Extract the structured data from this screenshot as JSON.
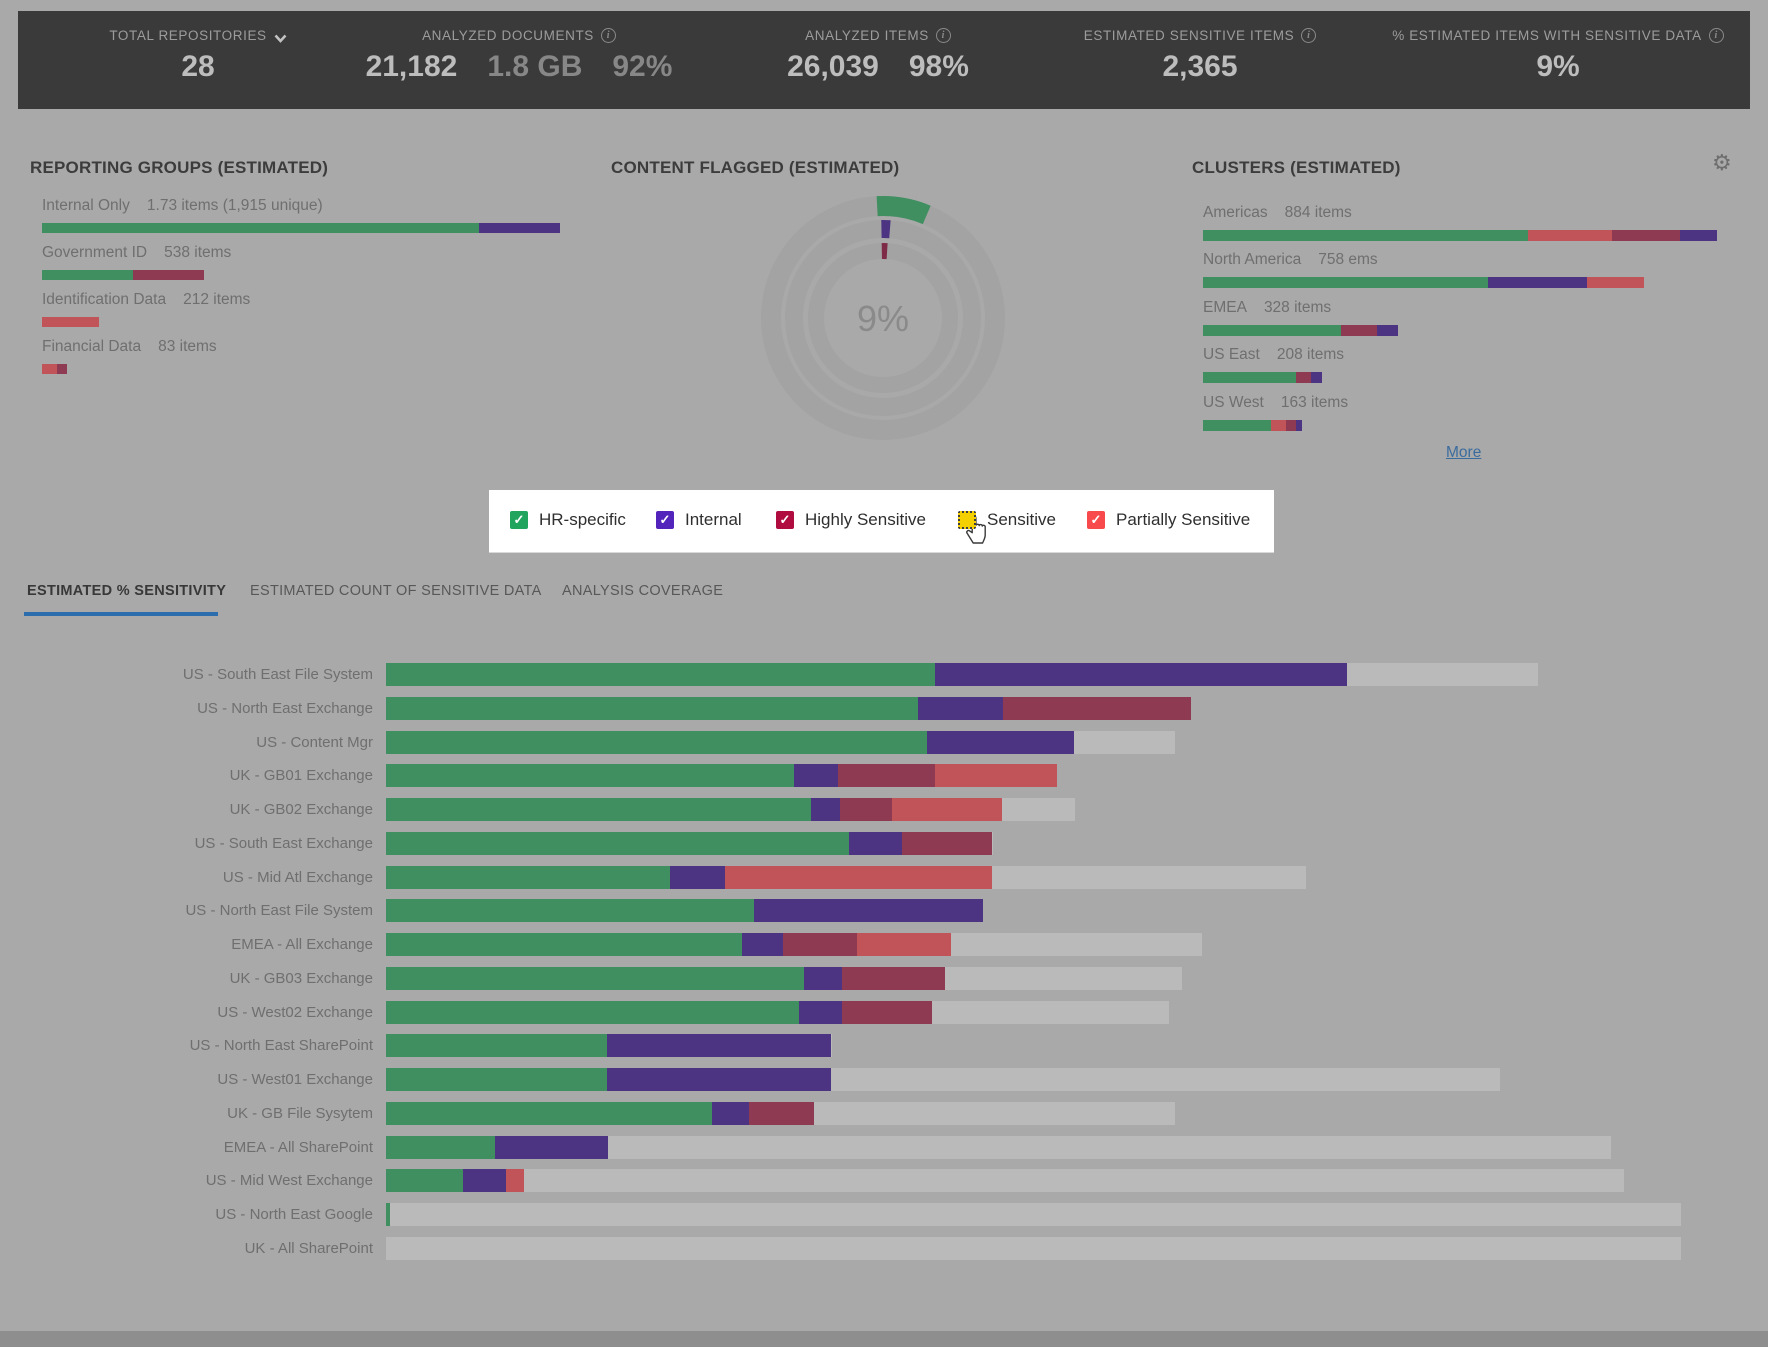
{
  "icons": {
    "gear": "⚙",
    "check": "✓",
    "info": "i"
  },
  "colors": {
    "hr": "#3f8f61",
    "internal": "#4d3483",
    "highly": "#8d3a52",
    "partially": "#c05459",
    "track": "#bababa",
    "ring_gray": "#a3a3a3",
    "donut_highly": "#7e2b47",
    "tab_accent": "#2c6dad",
    "link": "#3b6c9e"
  },
  "header": {
    "metrics": [
      {
        "label": "TOTAL REPOSITORIES",
        "icon": "chevron-down",
        "values": [
          {
            "text": "28",
            "dim": false
          }
        ]
      },
      {
        "label": "ANALYZED DOCUMENTS",
        "icon": "info",
        "values": [
          {
            "text": "21,182",
            "dim": false
          },
          {
            "text": "1.8 GB",
            "dim": true
          },
          {
            "text": "92%",
            "dim": true
          }
        ]
      },
      {
        "label": "ANALYZED ITEMS",
        "icon": "info",
        "values": [
          {
            "text": "26,039",
            "dim": false
          },
          {
            "text": "98%",
            "dim": false
          }
        ]
      },
      {
        "label": "ESTIMATED SENSITIVE ITEMS",
        "icon": "info",
        "values": [
          {
            "text": "2,365",
            "dim": false
          }
        ]
      },
      {
        "label": "% ESTIMATED ITEMS WITH SENSITIVE DATA",
        "icon": "info",
        "values": [
          {
            "text": "9%",
            "dim": false
          }
        ]
      }
    ]
  },
  "panels": {
    "reporting_groups": {
      "title": "REPORTING GROUPS (ESTIMATED)",
      "items": [
        {
          "label": "Internal Only",
          "value": "1.73 items (1,915 unique)",
          "segments": [
            [
              "hr",
              437
            ],
            [
              "internal",
              81
            ]
          ]
        },
        {
          "label": "Government ID",
          "value": "538 items",
          "segments": [
            [
              "hr",
              91
            ],
            [
              "highly",
              71
            ]
          ]
        },
        {
          "label": "Identification Data",
          "value": "212 items",
          "segments": [
            [
              "partially",
              57
            ]
          ]
        },
        {
          "label": "Financial Data",
          "value": "83 items",
          "segments": [
            [
              "partially",
              15
            ],
            [
              "highly",
              10
            ]
          ]
        }
      ]
    },
    "content_flagged": {
      "title": "CONTENT FLAGGED (ESTIMATED)",
      "center_label": "9%",
      "rings": [
        {
          "name": "outer",
          "color": "hr",
          "sweep_deg": 26
        },
        {
          "name": "middle",
          "color": "internal",
          "sweep_deg": 5.5
        },
        {
          "name": "inner",
          "color": "donut_highly",
          "sweep_deg": 4.5
        }
      ]
    },
    "clusters": {
      "title": "CLUSTERS (ESTIMATED)",
      "more_label": "More",
      "items": [
        {
          "label": "Americas",
          "value": "884 items",
          "segments": [
            [
              "hr",
              325
            ],
            [
              "partially",
              84
            ],
            [
              "highly",
              68
            ],
            [
              "internal",
              37
            ]
          ]
        },
        {
          "label": "North America",
          "value": "758 ems",
          "segments": [
            [
              "hr",
              285
            ],
            [
              "internal",
              99
            ],
            [
              "partially",
              57
            ]
          ]
        },
        {
          "label": "EMEA",
          "value": "328 items",
          "segments": [
            [
              "hr",
              138
            ],
            [
              "highly",
              36
            ],
            [
              "internal",
              21
            ]
          ]
        },
        {
          "label": "US East",
          "value": "208 items",
          "segments": [
            [
              "hr",
              93
            ],
            [
              "highly",
              15
            ],
            [
              "internal",
              11
            ]
          ]
        },
        {
          "label": "US West",
          "value": "163 items",
          "segments": [
            [
              "hr",
              68
            ],
            [
              "partially",
              15
            ],
            [
              "highly",
              10
            ],
            [
              "internal",
              6
            ]
          ]
        }
      ]
    }
  },
  "legend": {
    "items": [
      {
        "label": "HR-specific",
        "color": "#21a55e",
        "checked": true,
        "focused": false
      },
      {
        "label": "Internal",
        "color": "#5324bb",
        "checked": true,
        "focused": false
      },
      {
        "label": "Highly Sensitive",
        "color": "#b00c40",
        "checked": true,
        "focused": false
      },
      {
        "label": "Sensitive",
        "color": "#f5d000",
        "checked": false,
        "focused": true
      },
      {
        "label": "Partially Sensitive",
        "color": "#f8494d",
        "checked": true,
        "focused": false
      }
    ]
  },
  "tabs": [
    {
      "label": "ESTIMATED % SENSITIVITY",
      "active": true
    },
    {
      "label": "ESTIMATED COUNT OF SENSITIVE DATA",
      "active": false
    },
    {
      "label": "ANALYSIS COVERAGE",
      "active": false
    }
  ],
  "chart_data": {
    "type": "bar",
    "orientation": "horizontal-stacked",
    "unit": "px-at-1768w (relative estimated sensitivity share)",
    "track_max": 1295,
    "series_legend": [
      "HR-specific",
      "Internal",
      "Highly Sensitive",
      "Sensitive",
      "Partially Sensitive"
    ],
    "rows": [
      {
        "label": "US - South East File System",
        "track": 1152,
        "segments": [
          [
            "hr",
            549
          ],
          [
            "internal",
            412
          ]
        ]
      },
      {
        "label": "US - North East Exchange",
        "track": 805,
        "segments": [
          [
            "hr",
            532
          ],
          [
            "internal",
            85
          ],
          [
            "highly",
            188
          ]
        ]
      },
      {
        "label": "US - Content Mgr",
        "track": 789,
        "segments": [
          [
            "hr",
            541
          ],
          [
            "internal",
            147
          ]
        ]
      },
      {
        "label": "UK - GB01 Exchange",
        "track": 671,
        "segments": [
          [
            "hr",
            408
          ],
          [
            "internal",
            44
          ],
          [
            "highly",
            97
          ],
          [
            "partially",
            122
          ]
        ]
      },
      {
        "label": "UK - GB02 Exchange",
        "track": 689,
        "segments": [
          [
            "hr",
            425
          ],
          [
            "internal",
            29
          ],
          [
            "highly",
            52
          ],
          [
            "partially",
            110
          ]
        ]
      },
      {
        "label": "US - South East Exchange",
        "track": 607,
        "segments": [
          [
            "hr",
            463
          ],
          [
            "internal",
            53
          ],
          [
            "highly",
            90
          ]
        ]
      },
      {
        "label": "US - Mid Atl Exchange",
        "track": 920,
        "segments": [
          [
            "hr",
            284
          ],
          [
            "internal",
            55
          ],
          [
            "partially",
            267
          ]
        ]
      },
      {
        "label": "US - North East File System",
        "track": 597,
        "segments": [
          [
            "hr",
            368
          ],
          [
            "internal",
            229
          ]
        ]
      },
      {
        "label": "EMEA - All Exchange",
        "track": 816,
        "segments": [
          [
            "hr",
            356
          ],
          [
            "internal",
            41
          ],
          [
            "highly",
            74
          ],
          [
            "partially",
            94
          ]
        ]
      },
      {
        "label": "UK - GB03 Exchange",
        "track": 796,
        "segments": [
          [
            "hr",
            418
          ],
          [
            "internal",
            38
          ],
          [
            "highly",
            103
          ]
        ]
      },
      {
        "label": "US - West02 Exchange",
        "track": 783,
        "segments": [
          [
            "hr",
            413
          ],
          [
            "internal",
            43
          ],
          [
            "highly",
            90
          ]
        ]
      },
      {
        "label": "US - North East SharePoint",
        "track": 446,
        "segments": [
          [
            "hr",
            221
          ],
          [
            "internal",
            224
          ]
        ]
      },
      {
        "label": "US - West01 Exchange",
        "track": 1114,
        "segments": [
          [
            "hr",
            221
          ],
          [
            "internal",
            224
          ]
        ]
      },
      {
        "label": "UK - GB File Sysytem",
        "track": 789,
        "segments": [
          [
            "hr",
            326
          ],
          [
            "internal",
            37
          ],
          [
            "highly",
            65
          ]
        ]
      },
      {
        "label": "EMEA - All SharePoint",
        "track": 1225,
        "segments": [
          [
            "hr",
            109
          ],
          [
            "internal",
            113
          ]
        ]
      },
      {
        "label": "US - Mid West Exchange",
        "track": 1238,
        "segments": [
          [
            "hr",
            77
          ],
          [
            "internal",
            43
          ],
          [
            "partially",
            18
          ]
        ]
      },
      {
        "label": "US - North East Google",
        "track": 1295,
        "segments": [
          [
            "hr",
            4
          ]
        ]
      },
      {
        "label": "UK - All SharePoint",
        "track": 1295,
        "segments": []
      }
    ]
  }
}
